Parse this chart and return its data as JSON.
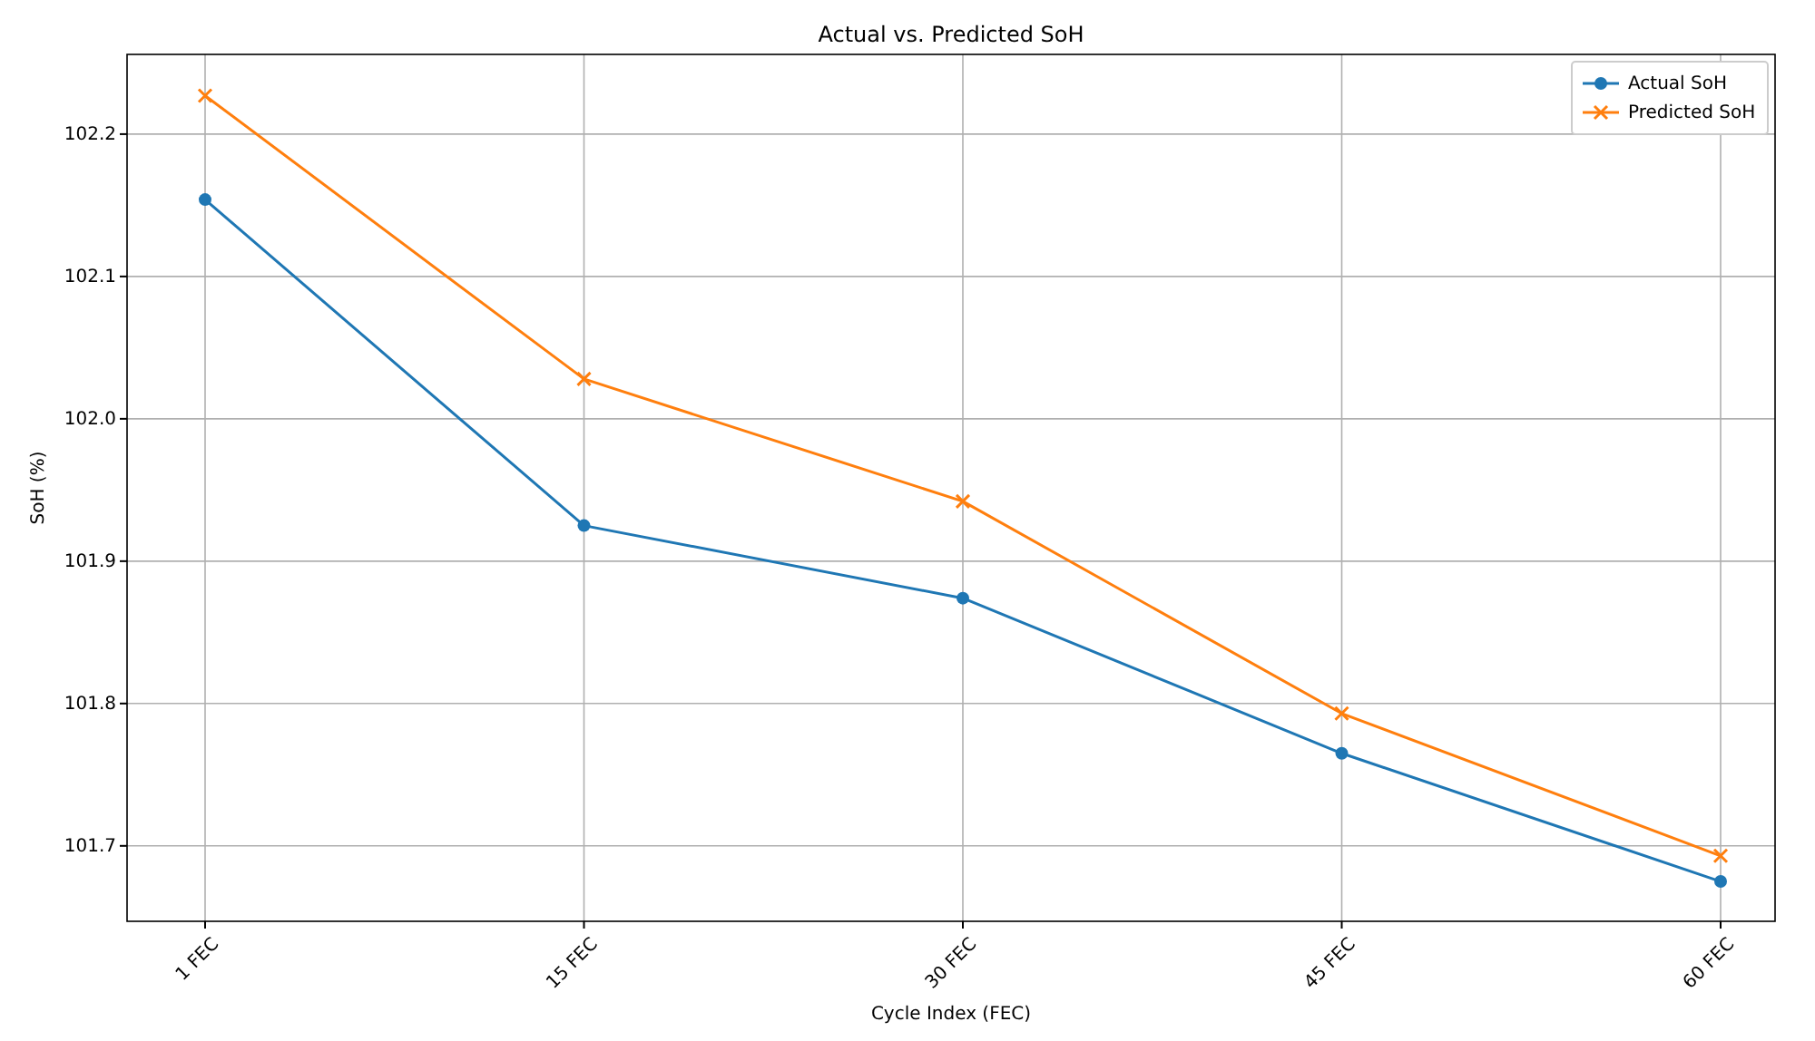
{
  "chart_data": {
    "type": "line",
    "title": "Actual vs. Predicted SoH",
    "xlabel": "Cycle Index (FEC)",
    "ylabel": "SoH (%)",
    "categories": [
      "1 FEC",
      "15 FEC",
      "30 FEC",
      "45 FEC",
      "60 FEC"
    ],
    "series": [
      {
        "name": "Actual SoH",
        "color": "#1f77b4",
        "marker": "circle",
        "values": [
          102.154,
          101.925,
          101.874,
          101.765,
          101.675
        ]
      },
      {
        "name": "Predicted SoH",
        "color": "#ff7f0e",
        "marker": "cross",
        "values": [
          102.227,
          102.028,
          101.942,
          101.793,
          101.693
        ]
      }
    ],
    "ylim": [
      101.647,
      102.256
    ],
    "yticks": [
      101.7,
      101.8,
      101.9,
      {
        "value": 102,
        "label": "102.0"
      },
      102.1,
      102.2
    ],
    "grid": true,
    "legend": "top right",
    "line_style": "solid"
  }
}
